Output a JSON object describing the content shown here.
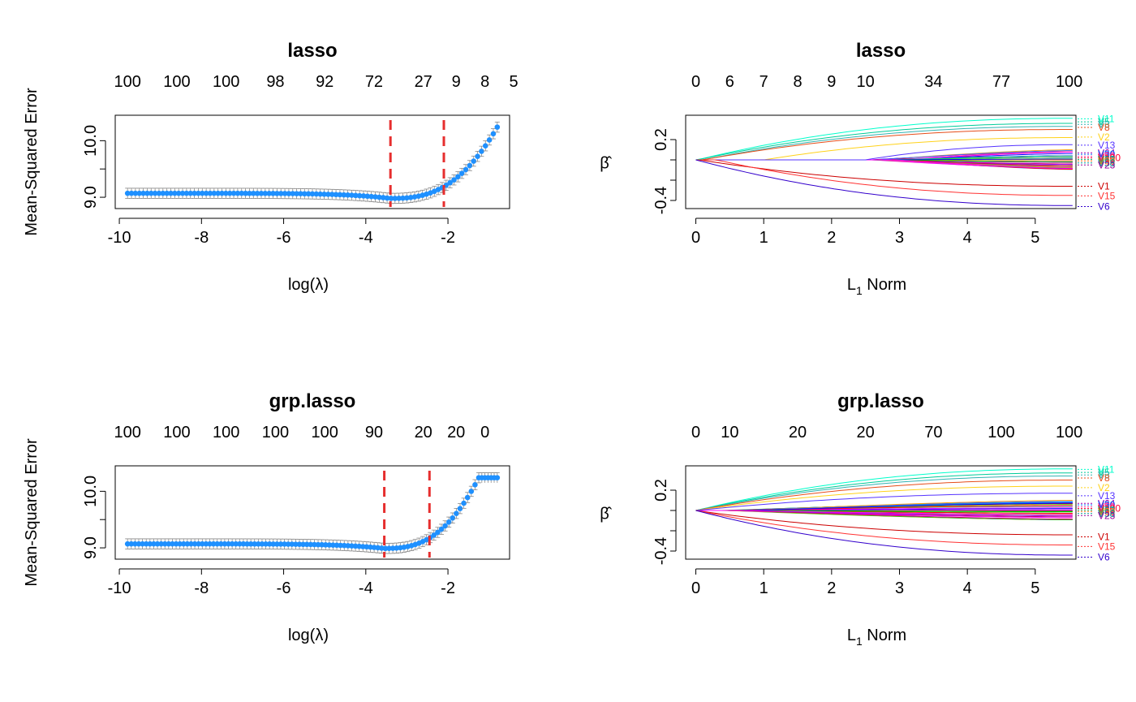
{
  "chart_data": [
    {
      "type": "scatter",
      "title": "lasso",
      "xlabel": "log(λ)",
      "ylabel": "Mean-Squared Error",
      "xlim": [
        -10.1,
        -0.5
      ],
      "ylim": [
        8.8,
        10.45
      ],
      "xticks": [
        -10,
        -8,
        -6,
        -4,
        -2
      ],
      "yticks": [
        9.0,
        9.5,
        10.0
      ],
      "ytick_labels": [
        "9.0",
        "",
        "10.0"
      ],
      "top_axis_labels": [
        "100",
        "100",
        "100",
        "98",
        "92",
        "72",
        "27",
        "9",
        "8",
        "5"
      ],
      "top_axis_positions": [
        -9.8,
        -8.6,
        -7.4,
        -6.2,
        -5.0,
        -3.8,
        -2.6,
        -1.8,
        -1.1,
        -0.4
      ],
      "vlines": [
        -3.4,
        -2.1
      ],
      "curve": {
        "lambda_min": -3.4,
        "min_mse": 8.98,
        "flat_mse": 9.07,
        "max_x": -0.8,
        "max_mse": 10.24,
        "x_start": -9.8,
        "n_points": 95
      },
      "error_bar_halfwidth": 0.09,
      "point_color": "#1E90FF",
      "vline_color": "#E62E2E"
    },
    {
      "type": "line",
      "title": "lasso",
      "xlabel": "L1 Norm",
      "ylabel": "β̂",
      "xlim": [
        -0.15,
        5.6
      ],
      "ylim": [
        -0.48,
        0.44
      ],
      "xticks": [
        0,
        1,
        2,
        3,
        4,
        5
      ],
      "yticks": [
        -0.4,
        -0.2,
        0.0,
        0.2
      ],
      "ytick_labels": [
        "-0.4",
        "",
        "",
        "0.2"
      ],
      "top_axis_labels": [
        "0",
        "6",
        "7",
        "8",
        "9",
        "10",
        "34",
        "77",
        "100"
      ],
      "top_axis_positions": [
        0,
        0.5,
        1.0,
        1.5,
        2.0,
        2.5,
        3.5,
        4.5,
        5.5
      ],
      "series": [
        {
          "name": "V11",
          "end": 0.41,
          "onset": 0.02,
          "color": "#00FFCC",
          "label_y": 0.405
        },
        {
          "name": "V5",
          "end": 0.36,
          "onset": 0.02,
          "color": "#00CC99",
          "label_y": 0.375
        },
        {
          "name": "V3",
          "end": 0.33,
          "onset": 0.1,
          "color": "#33B3B3",
          "label_y": 0.35
        },
        {
          "name": "V8",
          "end": 0.3,
          "onset": 0.1,
          "color": "#E64D1A",
          "label_y": 0.32
        },
        {
          "name": "V2",
          "end": 0.22,
          "onset": 1.0,
          "color": "#FFD21A",
          "label_y": 0.225
        },
        {
          "name": "V13",
          "end": 0.15,
          "onset": 2.5,
          "color": "#5533FF",
          "label_y": 0.145
        },
        {
          "name": "V1",
          "end": -0.26,
          "onset": 0.05,
          "color": "#CC0000",
          "label_y": -0.26
        },
        {
          "name": "V15",
          "end": -0.35,
          "onset": 0.3,
          "color": "#FF3333",
          "label_y": -0.355
        },
        {
          "name": "V6",
          "end": -0.45,
          "onset": 0.0,
          "color": "#3300CC",
          "label_y": -0.46
        }
      ],
      "cluster_labels": [
        {
          "name": "V64",
          "y": 0.07,
          "color": "#AA00AA"
        },
        {
          "name": "V30",
          "y": 0.055,
          "color": "#0066FF"
        },
        {
          "name": "V50",
          "y": 0.035,
          "color": "#FF3399"
        },
        {
          "name": "V100",
          "y": 0.02,
          "color": "#FF0033"
        },
        {
          "name": "V63",
          "y": 0.005,
          "color": "#00AA66"
        },
        {
          "name": "V99",
          "y": -0.01,
          "color": "#FF6600"
        },
        {
          "name": "V58",
          "y": -0.03,
          "color": "#009999"
        },
        {
          "name": "V23",
          "y": -0.05,
          "color": "#990099"
        }
      ],
      "noise_onset": 2.5,
      "noise_count": 40
    },
    {
      "type": "scatter",
      "title": "grp.lasso",
      "xlabel": "log(λ)",
      "ylabel": "Mean-Squared Error",
      "xlim": [
        -10.1,
        -0.5
      ],
      "ylim": [
        8.8,
        10.45
      ],
      "xticks": [
        -10,
        -8,
        -6,
        -4,
        -2
      ],
      "yticks": [
        9.0,
        9.5,
        10.0
      ],
      "ytick_labels": [
        "9.0",
        "",
        "10.0"
      ],
      "top_axis_labels": [
        "100",
        "100",
        "100",
        "100",
        "100",
        "90",
        "20",
        "20",
        "0"
      ],
      "top_axis_positions": [
        -9.8,
        -8.6,
        -7.4,
        -6.2,
        -5.0,
        -3.8,
        -2.6,
        -1.8,
        -1.1
      ],
      "vlines": [
        -3.55,
        -2.45
      ],
      "curve": {
        "lambda_min": -3.55,
        "min_mse": 8.99,
        "flat_mse": 9.07,
        "max_x": -1.25,
        "max_mse": 10.24,
        "x_start": -9.8,
        "n_points": 95,
        "plateau_until": -0.8
      },
      "error_bar_halfwidth": 0.09,
      "point_color": "#1E90FF",
      "vline_color": "#E62E2E"
    },
    {
      "type": "line",
      "title": "grp.lasso",
      "xlabel": "L1 Norm",
      "ylabel": "β̂",
      "xlim": [
        -0.15,
        5.6
      ],
      "ylim": [
        -0.48,
        0.44
      ],
      "xticks": [
        0,
        1,
        2,
        3,
        4,
        5
      ],
      "yticks": [
        -0.4,
        -0.2,
        0.0,
        0.2
      ],
      "ytick_labels": [
        "-0.4",
        "",
        "",
        "0.2"
      ],
      "top_axis_labels": [
        "0",
        "10",
        "20",
        "20",
        "70",
        "100",
        "100"
      ],
      "top_axis_positions": [
        0,
        0.5,
        1.5,
        2.5,
        3.5,
        4.5,
        5.5
      ],
      "series": [
        {
          "name": "V11",
          "end": 0.41,
          "onset": 0.0,
          "color": "#00FFCC",
          "label_y": 0.405
        },
        {
          "name": "V5",
          "end": 0.37,
          "onset": 0.0,
          "color": "#00CC99",
          "label_y": 0.375
        },
        {
          "name": "V3",
          "end": 0.34,
          "onset": 0.0,
          "color": "#33B3B3",
          "label_y": 0.35
        },
        {
          "name": "V8",
          "end": 0.3,
          "onset": 0.0,
          "color": "#E64D1A",
          "label_y": 0.32
        },
        {
          "name": "V2",
          "end": 0.24,
          "onset": 0.0,
          "color": "#FFD21A",
          "label_y": 0.225
        },
        {
          "name": "V13",
          "end": 0.17,
          "onset": 0.0,
          "color": "#5533FF",
          "label_y": 0.145
        },
        {
          "name": "V1",
          "end": -0.24,
          "onset": 0.0,
          "color": "#CC0000",
          "label_y": -0.26
        },
        {
          "name": "V15",
          "end": -0.34,
          "onset": 0.0,
          "color": "#FF3333",
          "label_y": -0.355
        },
        {
          "name": "V6",
          "end": -0.44,
          "onset": 0.0,
          "color": "#3300CC",
          "label_y": -0.46
        }
      ],
      "cluster_labels": [
        {
          "name": "V64",
          "y": 0.07,
          "color": "#AA00AA"
        },
        {
          "name": "V30",
          "y": 0.055,
          "color": "#0066FF"
        },
        {
          "name": "V50",
          "y": 0.035,
          "color": "#FF3399"
        },
        {
          "name": "V100",
          "y": 0.02,
          "color": "#FF0033"
        },
        {
          "name": "V63",
          "y": 0.005,
          "color": "#00AA66"
        },
        {
          "name": "V99",
          "y": -0.01,
          "color": "#FF6600"
        },
        {
          "name": "V58",
          "y": -0.03,
          "color": "#009999"
        },
        {
          "name": "V23",
          "y": -0.05,
          "color": "#990099"
        }
      ],
      "noise_onset": 0.3,
      "noise_count": 40
    }
  ]
}
